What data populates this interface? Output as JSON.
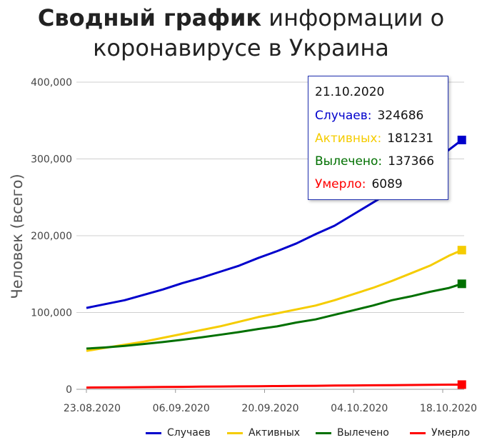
{
  "title": {
    "bold": "Сводный график",
    "normal_line1": "информации о",
    "line2": "коронавирусе в Украина"
  },
  "chart_data": {
    "type": "line",
    "ylabel": "Человек (всего)",
    "ylim": [
      0,
      400000
    ],
    "yticks": [
      0,
      100000,
      200000,
      300000,
      400000
    ],
    "ytick_labels": [
      "0",
      "100,000",
      "200,000",
      "300,000",
      "400,000"
    ],
    "xticks": [
      "2020-08-23",
      "2020-09-06",
      "2020-09-20",
      "2020-10-04",
      "2020-10-18"
    ],
    "xtick_labels": [
      "23.08.2020",
      "06.09.2020",
      "20.09.2020",
      "04.10.2020",
      "18.10.2020"
    ],
    "x": [
      "2020-08-23",
      "2020-08-26",
      "2020-08-29",
      "2020-09-01",
      "2020-09-04",
      "2020-09-07",
      "2020-09-10",
      "2020-09-13",
      "2020-09-16",
      "2020-09-19",
      "2020-09-22",
      "2020-09-25",
      "2020-09-28",
      "2020-10-01",
      "2020-10-04",
      "2020-10-07",
      "2020-10-10",
      "2020-10-13",
      "2020-10-16",
      "2020-10-19",
      "2020-10-21"
    ],
    "series": [
      {
        "name": "Случаев",
        "color": "#0000cc",
        "values": [
          106000,
          111000,
          116000,
          123000,
          130000,
          138000,
          145000,
          153000,
          161000,
          171000,
          180000,
          190000,
          202000,
          213000,
          228000,
          243000,
          258000,
          274000,
          292000,
          312000,
          324686
        ]
      },
      {
        "name": "Активных",
        "color": "#f5cc00",
        "values": [
          50000,
          54000,
          58000,
          62000,
          67000,
          72000,
          77000,
          82000,
          88000,
          94000,
          99000,
          104000,
          109000,
          116000,
          124000,
          132000,
          141000,
          151000,
          161000,
          174000,
          181231
        ]
      },
      {
        "name": "Вылечено",
        "color": "#007000",
        "values": [
          53000,
          54500,
          56500,
          59000,
          61500,
          64500,
          67500,
          71000,
          74500,
          78500,
          82000,
          87000,
          91000,
          97000,
          103000,
          109000,
          116000,
          121000,
          127000,
          132000,
          137366
        ]
      },
      {
        "name": "Умерло",
        "color": "#ff0000",
        "values": [
          2200,
          2400,
          2600,
          2800,
          3000,
          3200,
          3400,
          3600,
          3800,
          4000,
          4200,
          4400,
          4600,
          4800,
          5000,
          5200,
          5400,
          5600,
          5800,
          6000,
          6089
        ]
      }
    ],
    "tooltip": {
      "date": "21.10.2020",
      "rows": [
        {
          "label": "Случаев:",
          "value": "324686",
          "color": "#0000cc"
        },
        {
          "label": "Активных:",
          "value": "181231",
          "color": "#f5cc00"
        },
        {
          "label": "Вылечено:",
          "value": "137366",
          "color": "#007000"
        },
        {
          "label": "Умерло:",
          "value": "6089",
          "color": "#ff0000"
        }
      ]
    },
    "legend_position": "bottom",
    "grid": true
  }
}
